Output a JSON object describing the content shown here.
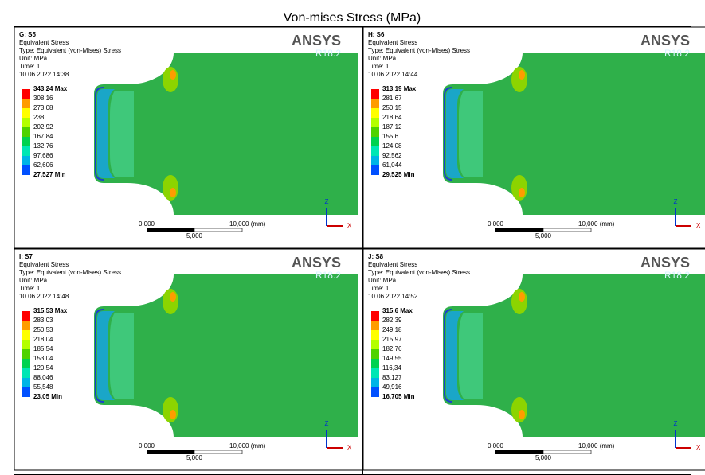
{
  "header": "Von-mises Stress (MPa)",
  "brand": "ANSYS",
  "version": "R18.2",
  "scale": {
    "start": "0,000",
    "end": "10,000 (mm)",
    "mid": "5,000"
  },
  "triad": {
    "z": "Z",
    "x": "X"
  },
  "panels": [
    {
      "title": "G: S5",
      "lines": [
        "Equivalent Stress",
        "Type: Equivalent (von-Mises) Stress",
        "Unit: MPa",
        "Time: 1",
        "10.06.2022 14:38"
      ],
      "legend": [
        "343,24 Max",
        "308,16",
        "273,08",
        "238",
        "202,92",
        "167,84",
        "132,76",
        "97,686",
        "62,606",
        "27,527 Min"
      ]
    },
    {
      "title": "H: S6",
      "lines": [
        "Equivalent Stress",
        "Type: Equivalent (von-Mises) Stress",
        "Unit: MPa",
        "Time: 1",
        "10.06.2022 14:44"
      ],
      "legend": [
        "313,19 Max",
        "281,67",
        "250,15",
        "218,64",
        "187,12",
        "155,6",
        "124,08",
        "92,562",
        "61,044",
        "29,525 Min"
      ]
    },
    {
      "title": "I: S7",
      "lines": [
        "Equivalent Stress",
        "Type: Equivalent (von-Mises) Stress",
        "Unit: MPa",
        "Time: 1",
        "10.06.2022 14:48"
      ],
      "legend": [
        "315,53 Max",
        "283,03",
        "250,53",
        "218,04",
        "185,54",
        "153,04",
        "120,54",
        "88,046",
        "55,548",
        "23,05 Min"
      ]
    },
    {
      "title": "J: S8",
      "lines": [
        "Equivalent Stress",
        "Type: Equivalent (von-Mises) Stress",
        "Unit: MPa",
        "Time: 1",
        "10.06.2022 14:52"
      ],
      "legend": [
        "315,6 Max",
        "282,39",
        "249,18",
        "215,97",
        "182,76",
        "149,55",
        "116,34",
        "83,127",
        "49,916",
        "16,705 Min"
      ]
    }
  ]
}
